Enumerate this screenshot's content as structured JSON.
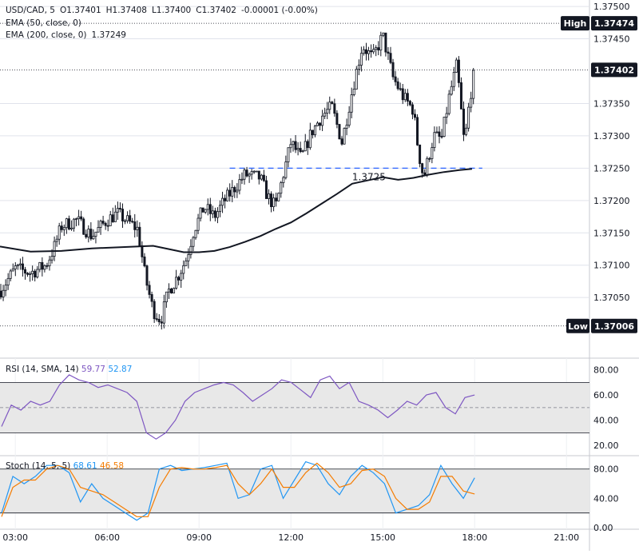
{
  "header": {
    "symbol": "USD/CAD, 5",
    "ohlc": {
      "open": "O1.37401",
      "high": "H1.37408",
      "low": "L1.37400",
      "close": "C1.37402",
      "change": "-0.00001 (-0.00%)"
    },
    "ema50_label": "EMA (50, close, 0)",
    "ema200_label": "EMA (200, close, 0)",
    "ema200_value": "1.37249"
  },
  "rsi_panel": {
    "label": "RSI (14, SMA, 14)",
    "value1": "59.77",
    "value2": "52.87"
  },
  "stoch_panel": {
    "label": "Stoch (14, 5, 5)",
    "value1": "68.61",
    "value2": "46.58"
  },
  "price_tags": {
    "high_label": "High",
    "high_value": "1.37474",
    "last_value": "1.37402",
    "low_label": "Low",
    "low_value": "1.37006"
  },
  "annotation": {
    "level_text": "1.3725",
    "level_value": 1.3725
  },
  "colors": {
    "candle": "#131722",
    "ema200": "#131722",
    "level_line": "#2962ff",
    "rsi_line": "#7e57c2",
    "stoch_k": "#2196f3",
    "stoch_d": "#f57c00",
    "band_fill": "#e8e8e8",
    "grid": "#e0e3eb"
  },
  "chart_data": [
    {
      "type": "candlestick",
      "title": "USD/CAD, 5",
      "ylim": [
        1.3696,
        1.3751
      ],
      "y_ticks": [
        "1.37500",
        "1.37450",
        "1.37350",
        "1.37300",
        "1.37250",
        "1.37200",
        "1.37150",
        "1.37100",
        "1.37050"
      ],
      "x_ticks": [
        "03:00",
        "06:00",
        "09:00",
        "12:00",
        "15:00",
        "18:00",
        "21:00"
      ],
      "x_time_range": [
        "02:30",
        "21:45"
      ],
      "high": 1.37474,
      "low": 1.37006,
      "last": 1.37402,
      "series": [
        {
          "name": "EMA (200, close, 0)",
          "type": "line",
          "points": [
            [
              "02:30",
              1.37129
            ],
            [
              "03:30",
              1.37121
            ],
            [
              "04:30",
              1.37122
            ],
            [
              "05:30",
              1.37126
            ],
            [
              "06:30",
              1.37128
            ],
            [
              "07:30",
              1.3713
            ],
            [
              "08:00",
              1.37125
            ],
            [
              "08:30",
              1.3712
            ],
            [
              "09:00",
              1.3712
            ],
            [
              "09:30",
              1.37122
            ],
            [
              "10:00",
              1.37128
            ],
            [
              "10:30",
              1.37136
            ],
            [
              "11:00",
              1.37145
            ],
            [
              "11:30",
              1.37156
            ],
            [
              "12:00",
              1.37166
            ],
            [
              "12:30",
              1.3718
            ],
            [
              "13:00",
              1.37195
            ],
            [
              "13:30",
              1.3721
            ],
            [
              "14:00",
              1.37226
            ],
            [
              "14:30",
              1.37231
            ],
            [
              "15:00",
              1.37236
            ],
            [
              "15:30",
              1.37232
            ],
            [
              "16:00",
              1.37235
            ],
            [
              "16:30",
              1.3724
            ],
            [
              "17:00",
              1.37244
            ],
            [
              "17:30",
              1.37247
            ],
            [
              "17:55",
              1.37249
            ]
          ]
        },
        {
          "name": "price",
          "type": "candles",
          "points": [
            [
              "02:30",
              1.3706
            ],
            [
              "03:00",
              1.37095
            ],
            [
              "03:30",
              1.37088
            ],
            [
              "04:00",
              1.371
            ],
            [
              "04:15",
              1.37125
            ],
            [
              "04:30",
              1.3716
            ],
            [
              "05:00",
              1.3717
            ],
            [
              "05:30",
              1.37145
            ],
            [
              "06:00",
              1.3717
            ],
            [
              "06:20",
              1.3718
            ],
            [
              "06:45",
              1.37165
            ],
            [
              "07:00",
              1.37155
            ],
            [
              "07:15",
              1.3708
            ],
            [
              "07:30",
              1.3703
            ],
            [
              "07:45",
              1.37015
            ],
            [
              "08:00",
              1.3706
            ],
            [
              "08:20",
              1.37085
            ],
            [
              "08:35",
              1.3711
            ],
            [
              "08:50",
              1.37155
            ],
            [
              "09:10",
              1.3719
            ],
            [
              "09:30",
              1.37175
            ],
            [
              "09:50",
              1.372
            ],
            [
              "10:10",
              1.3722
            ],
            [
              "10:30",
              1.3724
            ],
            [
              "11:00",
              1.37235
            ],
            [
              "11:15",
              1.37205
            ],
            [
              "11:30",
              1.3719
            ],
            [
              "11:45",
              1.3724
            ],
            [
              "12:00",
              1.3729
            ],
            [
              "12:20",
              1.37265
            ],
            [
              "12:40",
              1.37305
            ],
            [
              "13:00",
              1.3733
            ],
            [
              "13:20",
              1.37345
            ],
            [
              "13:40",
              1.3729
            ],
            [
              "14:00",
              1.3737
            ],
            [
              "14:20",
              1.3744
            ],
            [
              "14:40",
              1.3742
            ],
            [
              "15:00",
              1.37455
            ],
            [
              "15:20",
              1.3739
            ],
            [
              "15:40",
              1.3736
            ],
            [
              "16:00",
              1.3734
            ],
            [
              "16:10",
              1.37275
            ],
            [
              "16:20",
              1.37235
            ],
            [
              "16:40",
              1.373
            ],
            [
              "16:55",
              1.37295
            ],
            [
              "17:10",
              1.3736
            ],
            [
              "17:25",
              1.3741
            ],
            [
              "17:40",
              1.37285
            ],
            [
              "17:50",
              1.37355
            ],
            [
              "18:00",
              1.37402
            ]
          ]
        }
      ]
    },
    {
      "type": "line",
      "title": "RSI (14, SMA, 14)",
      "ylim": [
        15,
        88
      ],
      "y_ticks": [
        "80.00",
        "60.00",
        "40.00",
        "20.00"
      ],
      "bands": [
        30,
        70
      ],
      "midline": 50,
      "series": [
        {
          "name": "RSI",
          "values": [
            35,
            52,
            48,
            55,
            52,
            55,
            68,
            76,
            72,
            70,
            66,
            68,
            65,
            62,
            55,
            30,
            25,
            30,
            40,
            55,
            62,
            65,
            68,
            70,
            68,
            62,
            55,
            60,
            65,
            72,
            70,
            64,
            58,
            72,
            75,
            65,
            70,
            55,
            52,
            48,
            42,
            48,
            55,
            52,
            60,
            62,
            50,
            45,
            58,
            60
          ]
        },
        {
          "name": "RSI SMA",
          "values": [
            50,
            50,
            51,
            51,
            52,
            53,
            55,
            58,
            60,
            61,
            62,
            63,
            63,
            62,
            61,
            56,
            52,
            48,
            46,
            46,
            48,
            50,
            53,
            56,
            58,
            60,
            60,
            61,
            62,
            63,
            64,
            64,
            64,
            65,
            66,
            66,
            66,
            64,
            62,
            60,
            58,
            56,
            54,
            53,
            53,
            53,
            52,
            52,
            52,
            53
          ]
        }
      ]
    },
    {
      "type": "line",
      "title": "Stoch (14, 5, 5)",
      "ylim": [
        0,
        95
      ],
      "y_ticks": [
        "80.00",
        "40.00",
        "0.00"
      ],
      "bands": [
        20,
        80
      ],
      "series": [
        {
          "name": "%K",
          "values": [
            20,
            70,
            60,
            70,
            85,
            85,
            75,
            35,
            60,
            40,
            30,
            20,
            10,
            20,
            80,
            85,
            78,
            80,
            82,
            85,
            88,
            40,
            45,
            80,
            85,
            40,
            65,
            90,
            85,
            60,
            45,
            70,
            85,
            75,
            60,
            20,
            25,
            30,
            45,
            85,
            60,
            40,
            68
          ]
        },
        {
          "name": "%D",
          "values": [
            15,
            55,
            65,
            65,
            80,
            85,
            80,
            55,
            50,
            45,
            35,
            25,
            15,
            15,
            55,
            80,
            82,
            80,
            80,
            82,
            85,
            60,
            45,
            60,
            80,
            55,
            55,
            75,
            88,
            75,
            55,
            60,
            78,
            80,
            70,
            40,
            25,
            25,
            35,
            70,
            70,
            50,
            46
          ]
        }
      ]
    }
  ]
}
